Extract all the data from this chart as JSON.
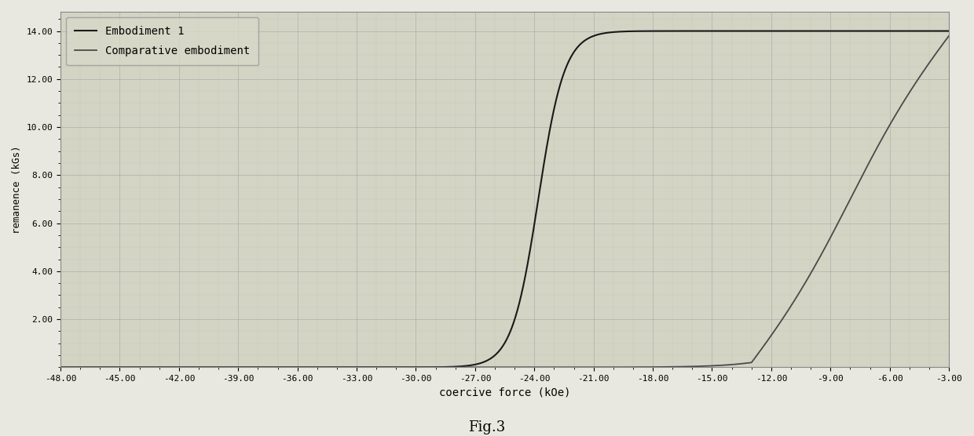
{
  "title": "",
  "xlabel": "coercive force (kOe)",
  "ylabel": "remanence (kGs)",
  "fig_caption": "Fig.3",
  "xlim": [
    -48,
    -3
  ],
  "ylim": [
    0,
    14.8
  ],
  "xtick_values": [
    -48,
    -45,
    -42,
    -39,
    -36,
    -33,
    -30,
    -27,
    -24,
    -21,
    -18,
    -15,
    -12,
    -9,
    -6,
    -3
  ],
  "ytick_values": [
    2.0,
    4.0,
    6.0,
    8.0,
    10.0,
    12.0,
    14.0
  ],
  "fig_bg_color": "#e8e8e0",
  "plot_bg_color": "#d4d4c4",
  "grid_major_color": "#aaaaaa",
  "grid_minor_color": "#c0c0b0",
  "legend_labels": [
    "Embodiment 1",
    "Comparative embodiment"
  ],
  "curve1_color": "#1a1a1a",
  "curve2_color": "#4a4a4a",
  "sat_value": 14.0,
  "curve1_midpoint": -23.8,
  "curve1_steepness": 1.5,
  "curve2_start": -13.0,
  "curve2_end": -3.0,
  "curve2_slope_sat": 14.0,
  "ylabel_fontsize": 9,
  "xlabel_fontsize": 10,
  "tick_fontsize": 8
}
